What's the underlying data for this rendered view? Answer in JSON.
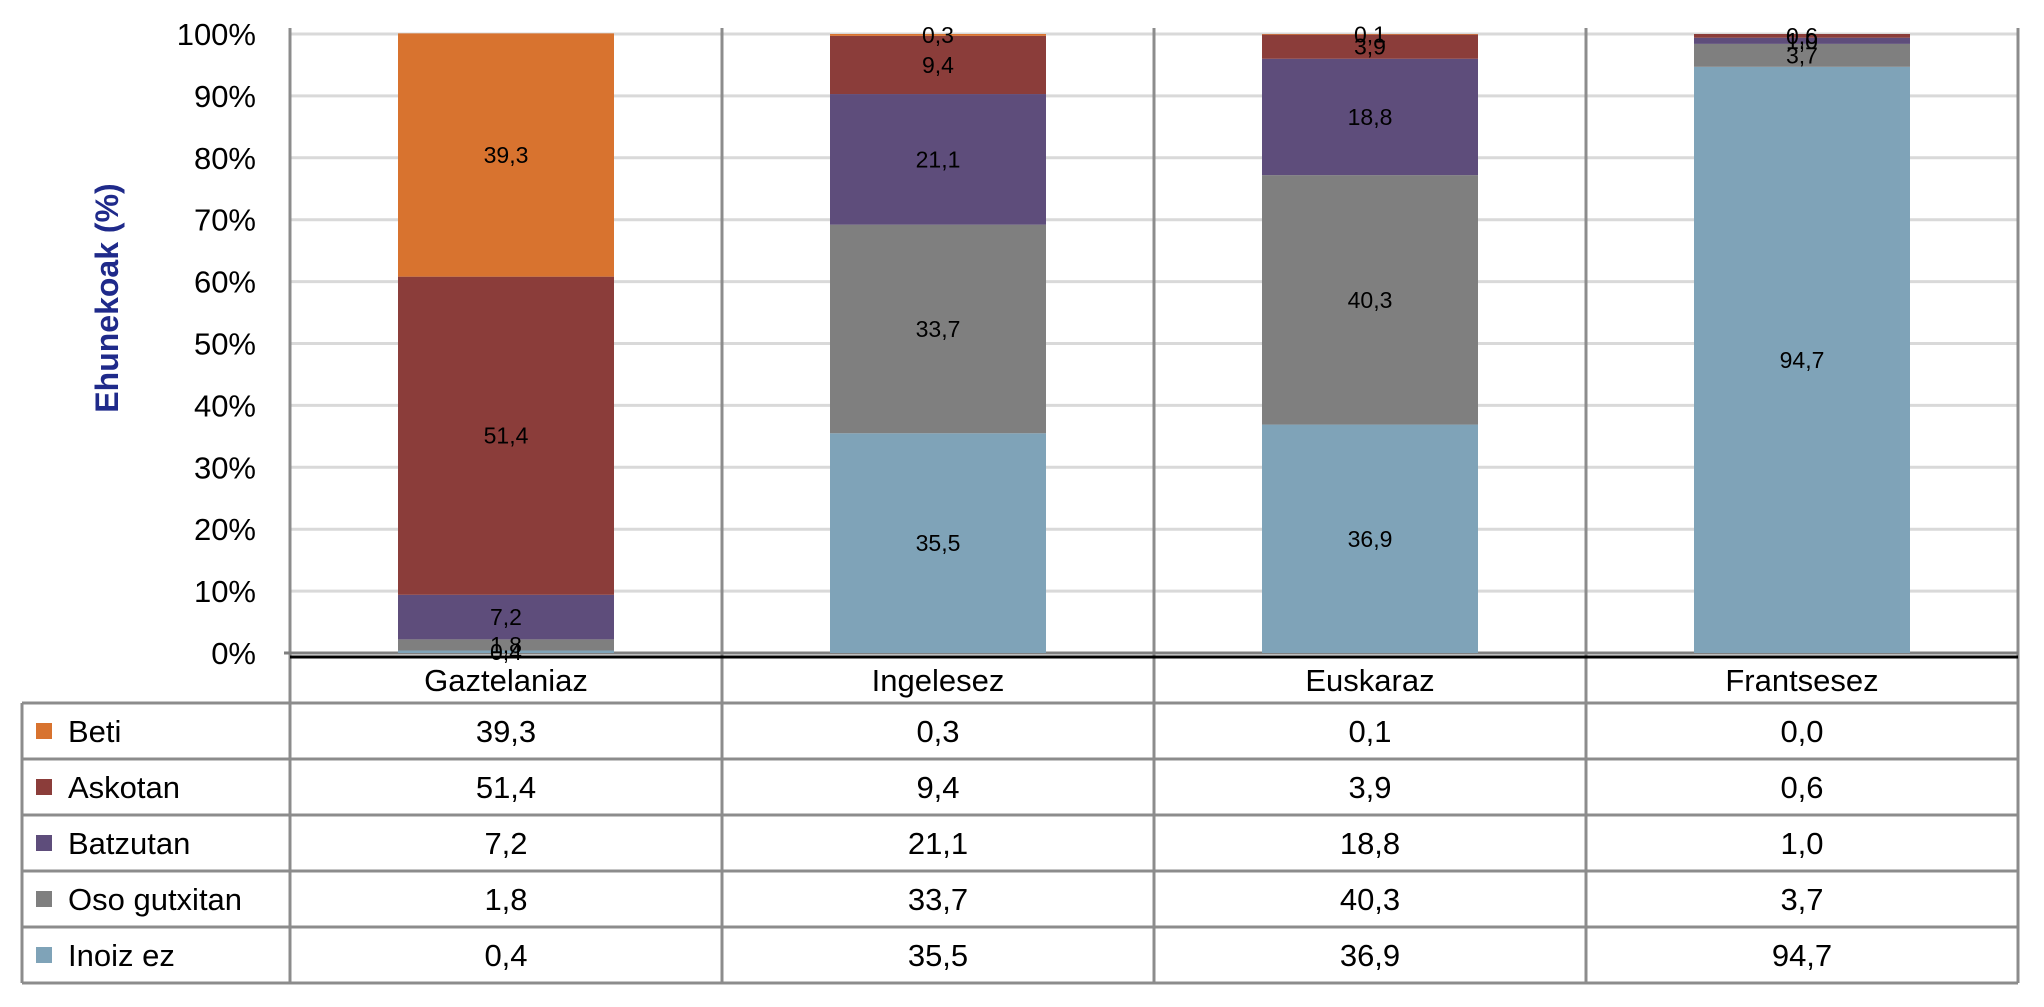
{
  "chart_data": {
    "type": "bar",
    "stacked": true,
    "normalized": true,
    "title": "",
    "xlabel": "",
    "ylabel": "Ehunekoak (%)",
    "ylim": [
      0,
      100
    ],
    "y_ticks": [
      "0%",
      "10%",
      "20%",
      "30%",
      "40%",
      "50%",
      "60%",
      "70%",
      "80%",
      "90%",
      "100%"
    ],
    "grid": true,
    "legend_placement": "data-table-left",
    "categories": [
      "Gaztelaniaz",
      "Ingelesez",
      "Euskaraz",
      "Frantsesez"
    ],
    "series": [
      {
        "name": "Inoiz ez",
        "color": "#7fa3b8",
        "values": [
          0.4,
          35.5,
          36.9,
          94.7
        ],
        "labels": [
          "0,4",
          "35,5",
          "36,9",
          "94,7"
        ]
      },
      {
        "name": "Oso gutxitan",
        "color": "#7f7f7f",
        "values": [
          1.8,
          33.7,
          40.3,
          3.7
        ],
        "labels": [
          "1,8",
          "33,7",
          "40,3",
          "3,7"
        ]
      },
      {
        "name": "Batzutan",
        "color": "#5e4d7b",
        "values": [
          7.2,
          21.1,
          18.8,
          1.0
        ],
        "labels": [
          "7,2",
          "21,1",
          "18,8",
          "1,0"
        ]
      },
      {
        "name": "Askotan",
        "color": "#8b3d3a",
        "values": [
          51.4,
          9.4,
          3.9,
          0.6
        ],
        "labels": [
          "51,4",
          "9,4",
          "3,9",
          "0,6"
        ]
      },
      {
        "name": "Beti",
        "color": "#d8732f",
        "values": [
          39.3,
          0.3,
          0.1,
          0.0
        ],
        "labels": [
          "39,3",
          "0,3",
          "0,1",
          "0,0"
        ]
      }
    ],
    "table_order": [
      "Beti",
      "Askotan",
      "Batzutan",
      "Oso gutxitan",
      "Inoiz ez"
    ],
    "colors": {
      "ylabel": "#1f2a8a",
      "grid": "#d9d9d9",
      "table_border": "#8c8c8c"
    }
  }
}
